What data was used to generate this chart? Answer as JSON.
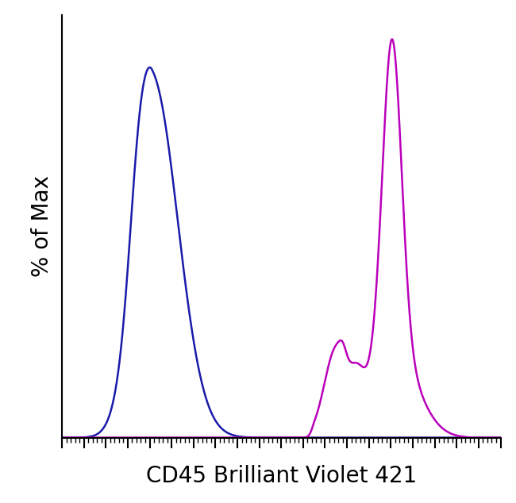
{
  "title": "",
  "xlabel": "CD45 Brilliant Violet 421",
  "ylabel": "% of Max",
  "xlabel_fontsize": 20,
  "ylabel_fontsize": 20,
  "background_color": "#ffffff",
  "line_color_blue": "#1a1aaa",
  "line_color_magenta": "#bb00bb",
  "line_width": 1.8,
  "xlim": [
    0,
    1023
  ],
  "ylim": [
    0,
    1.05
  ]
}
